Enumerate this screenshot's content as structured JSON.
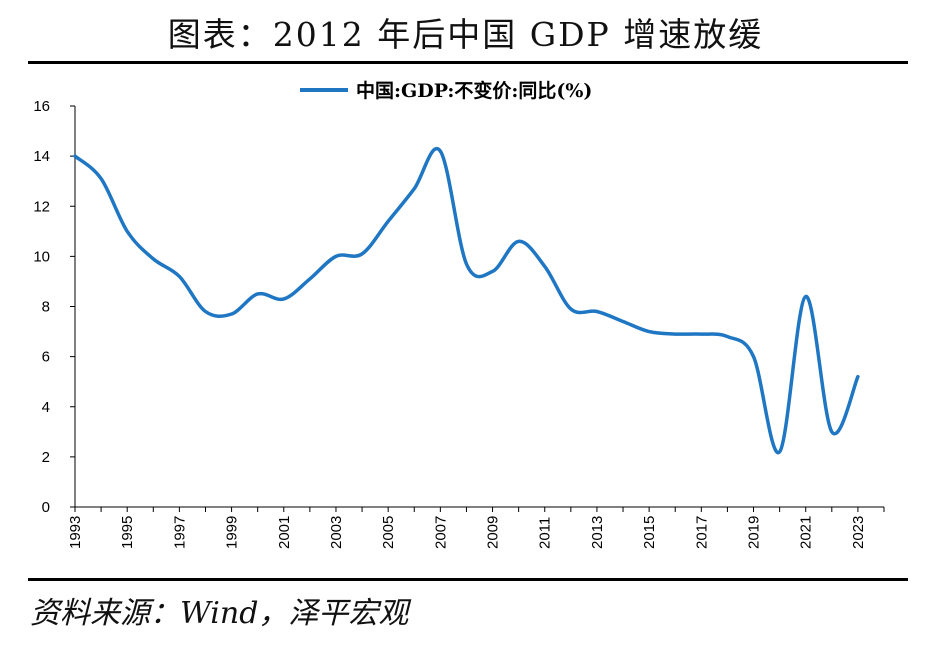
{
  "title": "图表：2012 年后中国 GDP 增速放缓",
  "source": "资料来源：Wind，泽平宏观",
  "chart_data": {
    "type": "line",
    "legend_position": "top",
    "grid": false,
    "series": [
      {
        "name": "中国:GDP:不变价:同比(%)",
        "color": "#1f77c3",
        "x": [
          1993,
          1994,
          1995,
          1996,
          1997,
          1998,
          1999,
          2000,
          2001,
          2002,
          2003,
          2004,
          2005,
          2006,
          2007,
          2008,
          2009,
          2010,
          2011,
          2012,
          2013,
          2014,
          2015,
          2016,
          2017,
          2018,
          2019,
          2020,
          2021,
          2022,
          2023,
          2024
        ],
        "values": [
          14.0,
          13.1,
          11.0,
          9.9,
          9.2,
          7.8,
          7.7,
          8.5,
          8.3,
          9.1,
          10.0,
          10.1,
          11.4,
          12.7,
          14.2,
          9.7,
          9.4,
          10.6,
          9.6,
          7.9,
          7.8,
          7.4,
          7.0,
          6.9,
          6.9,
          6.8,
          6.0,
          2.2,
          8.4,
          3.0,
          5.2,
          null
        ]
      }
    ],
    "x_ticks": [
      "1993",
      "1995",
      "1997",
      "1999",
      "2001",
      "2003",
      "2005",
      "2007",
      "2009",
      "2011",
      "2013",
      "2015",
      "2017",
      "2019",
      "2021",
      "2023"
    ],
    "y_ticks": [
      "0",
      "2",
      "4",
      "6",
      "8",
      "10",
      "12",
      "14",
      "16"
    ],
    "ylim": [
      0,
      16
    ],
    "xlim": [
      1993,
      2024
    ]
  }
}
